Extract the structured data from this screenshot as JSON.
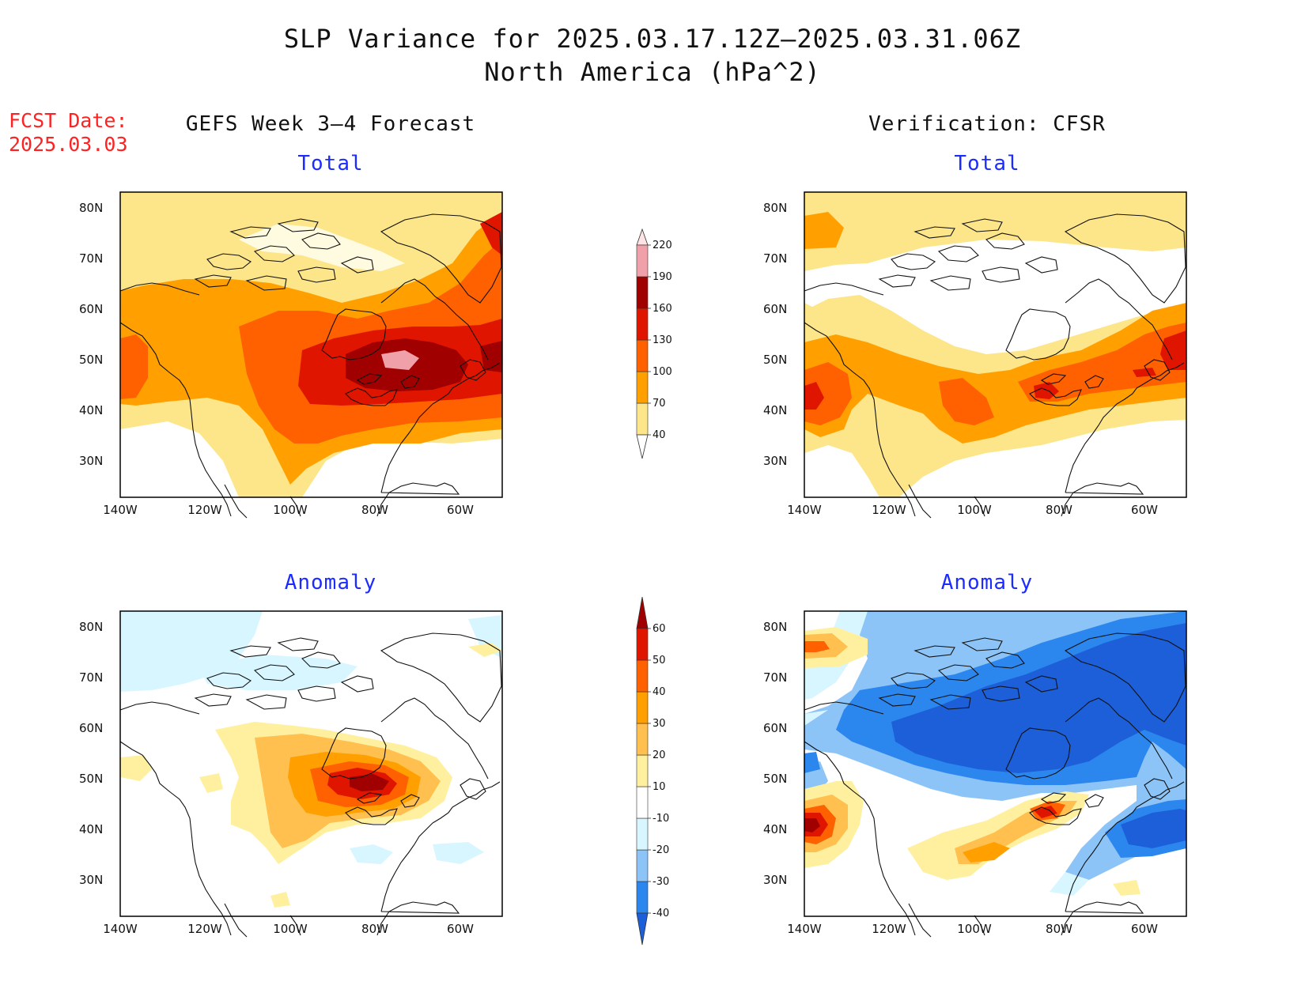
{
  "title": {
    "line1": "SLP Variance for 2025.03.17.12Z–2025.03.31.06Z",
    "line2": "North America (hPa^2)"
  },
  "fcst_date": {
    "label": "FCST Date:",
    "value": "2025.03.03"
  },
  "columns": {
    "left": "GEFS Week 3–4 Forecast",
    "right": "Verification: CFSR"
  },
  "panel_titles": {
    "total": "Total",
    "anomaly": "Anomaly"
  },
  "axes": {
    "lon_ticks": [
      "140W",
      "120W",
      "100W",
      "80W",
      "60W"
    ],
    "lat_ticks": [
      "80N",
      "70N",
      "60N",
      "50N",
      "40N",
      "30N"
    ]
  },
  "colorbars": {
    "total": {
      "levels": [
        "40",
        "70",
        "100",
        "130",
        "160",
        "190",
        "220"
      ],
      "colors": [
        "#ffffff",
        "#fde58a",
        "#ffa000",
        "#ff6000",
        "#e01500",
        "#a00000",
        "#f0a0a8",
        "#ffe4e6"
      ]
    },
    "anomaly": {
      "levels": [
        "-40",
        "-30",
        "-20",
        "-10",
        "10",
        "20",
        "30",
        "40",
        "50",
        "60"
      ],
      "colors": [
        "#1c5fd8",
        "#2b86ee",
        "#8cc4f8",
        "#d8f6ff",
        "#ffffff",
        "#fff0a0",
        "#ffc050",
        "#ffa000",
        "#ff6000",
        "#e01500",
        "#a00000"
      ]
    }
  },
  "colors": {
    "title_red": "#ff2222",
    "subtitle_blue": "#1c2cff"
  }
}
